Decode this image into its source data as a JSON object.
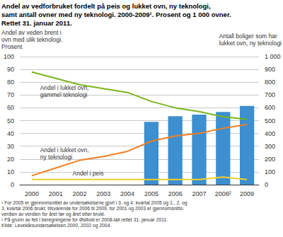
{
  "chart_data": {
    "type": "line",
    "title": "Andel av vedforbruket fordelt på peis og lukket ovn, ny teknologi,\nsamt antall ovner med ny teknologi. 2000-2009¹. Prosent og 1 000 ovner.\nRettet 31. januar 2011.",
    "y_label": "Andel av veden brent i\novn med ulik teknologi.\nProsent",
    "y2_label": "Antall boliger som har\nlukket ovn, ny teknologi",
    "categories": [
      "2000",
      "2001",
      "2002",
      "2003",
      "2004",
      "2005",
      "2006",
      "2007",
      "2008²",
      "2009"
    ],
    "series": [
      {
        "name": "Andel i lukket ovn, gammel teknologi",
        "type": "line",
        "color": "#7ab51d",
        "values": [
          88,
          83,
          78,
          75,
          72,
          65,
          60,
          57,
          53,
          51
        ]
      },
      {
        "name": "Andel i lukket ovn, ny teknologi",
        "type": "line",
        "color": "#f07f22",
        "values": [
          7,
          13,
          19,
          22,
          26,
          34,
          38,
          40,
          44,
          47
        ]
      },
      {
        "name": "Andel i peis",
        "type": "line",
        "color": "#f2cf2a",
        "values": [
          4,
          4,
          4,
          4,
          4,
          4,
          4,
          4,
          6,
          4
        ]
      },
      {
        "name": "Antall boliger som har lukket ovn, ny teknologi",
        "type": "bar",
        "axis": "y2",
        "color": "#3d8fcf",
        "values": [
          null,
          null,
          null,
          null,
          null,
          490,
          535,
          547,
          568,
          615
        ]
      }
    ],
    "ylim": [
      0,
      100
    ],
    "yticks": [
      0,
      10,
      20,
      30,
      40,
      50,
      60,
      70,
      80,
      90,
      100
    ],
    "y2lim": [
      0,
      1000
    ],
    "y2ticks": [
      0,
      100,
      200,
      300,
      400,
      500,
      600,
      700,
      800,
      900,
      {
        "value": 1000,
        "label": "1 000"
      }
    ],
    "grid": true,
    "footnotes": [
      "¹ For 2005 er gjennomsnittet av undersøkelsene gjort i 3. og 4. kvartal 2005 og 1., 2. og\n3. kvartal 2006 brukt, tilsvarende for 2006 til 2009, for 2001 og 2003 er gjennomsnitts-\nverdien av verdien for året før og året etter brukt.",
      "² På grunn av feil i beregningene for Østfold er 2008-tall rettet 31. januar 2011.",
      "Kilde: Levekårsundersøkelsen 2000, 2002 og 2004."
    ]
  }
}
